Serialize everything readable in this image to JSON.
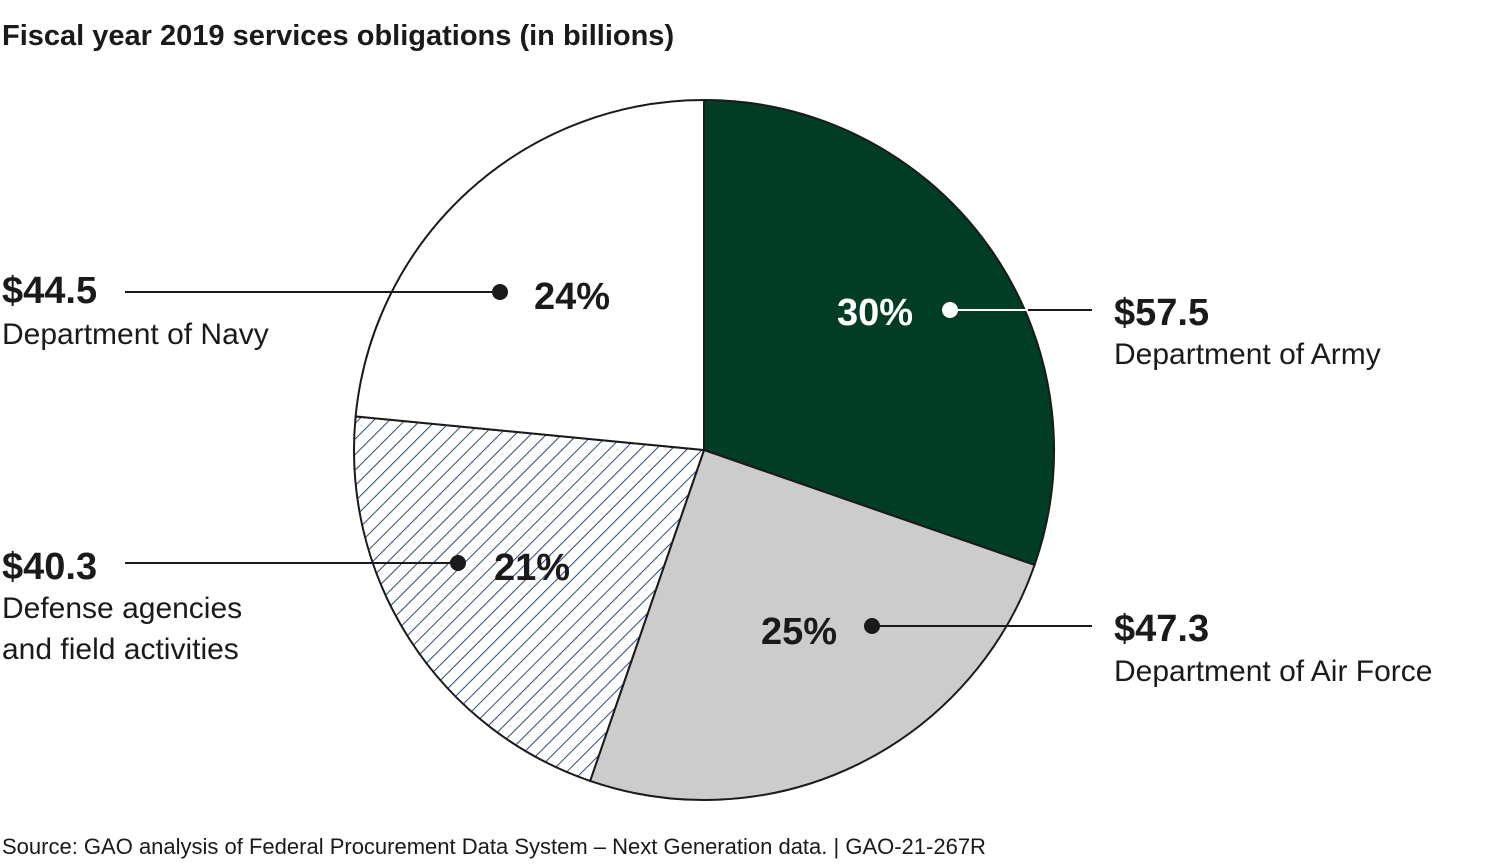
{
  "chart_data": {
    "type": "pie",
    "title": "Fiscal year 2019 services obligations (in billions)",
    "unit": "billions",
    "slices": [
      {
        "label": "Department of Army",
        "value": 57.5,
        "value_text": "$57.5",
        "percent_text": "30%",
        "fill": "#003d24",
        "text_color": "#ffffff"
      },
      {
        "label": "Department of Air Force",
        "value": 47.3,
        "value_text": "$47.3",
        "percent_text": "25%",
        "fill": "#cccccc",
        "text_color": "#1a1a1a"
      },
      {
        "label": "Defense agencies\nand field activities",
        "value": 40.3,
        "value_text": "$40.3",
        "percent_text": "21%",
        "fill": "hatch",
        "text_color": "#1a1a1a"
      },
      {
        "label": "Department of Navy",
        "value": 44.5,
        "value_text": "$44.5",
        "percent_text": "24%",
        "fill": "#ffffff",
        "text_color": "#1a1a1a"
      }
    ],
    "start": "12 o'clock",
    "direction": "clockwise",
    "hatch_color": "#2e4a7a"
  },
  "source_text": "Source: GAO analysis of Federal Procurement Data System – Next Generation data.  |  GAO-21-267R"
}
